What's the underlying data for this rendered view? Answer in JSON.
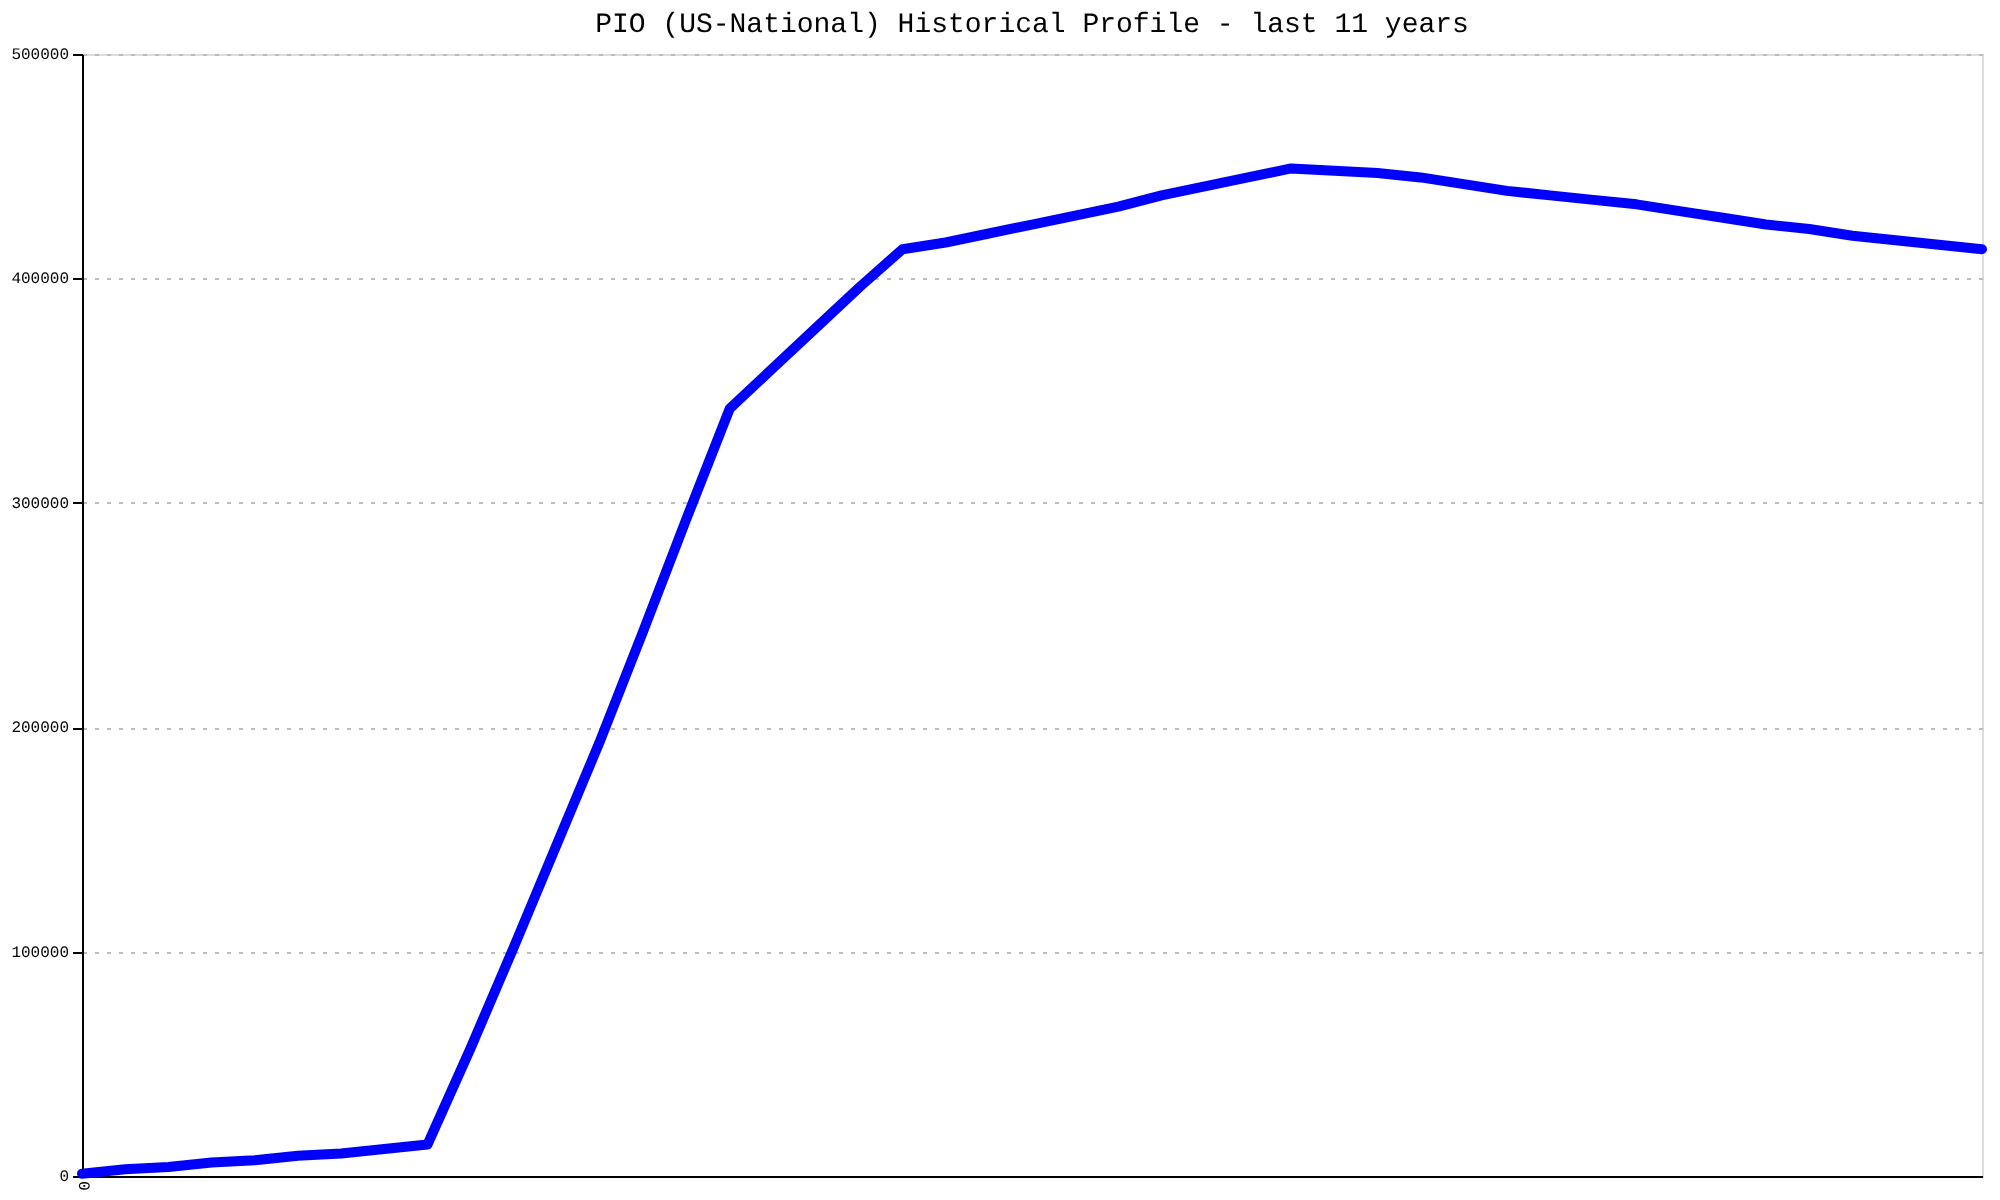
{
  "chart_data": {
    "type": "line",
    "title": "PIO (US-National) Historical Profile - last 11 years",
    "categories": [
      "0",
      null,
      null,
      null,
      null,
      null,
      null,
      null,
      null,
      null,
      null,
      null,
      null,
      null,
      null,
      null,
      null,
      null,
      null,
      null,
      null,
      null,
      null,
      null,
      null,
      null,
      null,
      null,
      null,
      null,
      null,
      null,
      null,
      null,
      null,
      null,
      null,
      null,
      null,
      null,
      null,
      null,
      null,
      null,
      null
    ],
    "series": [
      {
        "color": "#0000ff",
        "values": [
          1000,
          3000,
          4000,
          6000,
          7000,
          9000,
          10000,
          12000,
          14000,
          57000,
          102000,
          148000,
          194000,
          243000,
          293000,
          342000,
          360000,
          378000,
          396000,
          413000,
          416000,
          420000,
          424000,
          428000,
          432000,
          437000,
          441000,
          445000,
          449000,
          448000,
          447000,
          445000,
          442000,
          439000,
          437000,
          435000,
          433000,
          430000,
          427000,
          424000,
          422000,
          419000,
          417000,
          415000,
          413000
        ]
      }
    ],
    "ylim": [
      0,
      500000
    ],
    "yticks": [
      0,
      100000,
      200000,
      300000,
      400000,
      500000
    ],
    "grid": "y",
    "marker": "none",
    "line_style": "solid"
  }
}
